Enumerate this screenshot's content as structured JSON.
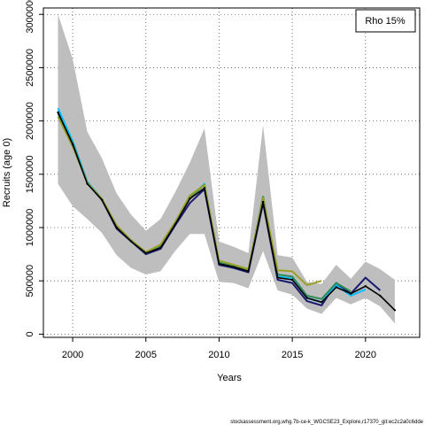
{
  "chart_data": {
    "type": "line",
    "xlabel": "Years",
    "ylabel": "Recruits (age 0)",
    "xlim": [
      1998,
      2023.7
    ],
    "ylim": [
      -30000,
      3060000
    ],
    "x_ticks": [
      2000,
      2005,
      2010,
      2015,
      2020
    ],
    "y_ticks": [
      0,
      500000,
      1000000,
      1500000,
      2000000,
      2500000,
      3000000
    ],
    "x_tick_labels": [
      "2000",
      "2005",
      "2010",
      "2015",
      "2020"
    ],
    "y_tick_labels": [
      "0",
      "500000",
      "1000000",
      "1500000",
      "2000000",
      "2500000",
      "3000000"
    ],
    "grid": true,
    "legend_position": "top-right",
    "legend_text": "Rho 15%",
    "caption": "stockassessment.org,whg.7b-ce-k_WGCSE23_Explore,r17370_git:ec2c2a0c6dde",
    "band": {
      "x": [
        1999,
        2000,
        2001,
        2002,
        2003,
        2004,
        2005,
        2006,
        2007,
        2008,
        2009,
        2010,
        2011,
        2012,
        2013,
        2014,
        2015,
        2016,
        2017,
        2018,
        2019,
        2020,
        2021,
        2022
      ],
      "upper": [
        3000000,
        2580000,
        1900000,
        1650000,
        1320000,
        1120000,
        970000,
        1080000,
        1330000,
        1610000,
        1930000,
        870000,
        820000,
        760000,
        1960000,
        740000,
        720000,
        490000,
        470000,
        650000,
        520000,
        680000,
        610000,
        510000
      ],
      "lower": [
        1410000,
        1200000,
        1080000,
        950000,
        740000,
        620000,
        560000,
        590000,
        780000,
        940000,
        940000,
        490000,
        480000,
        430000,
        780000,
        410000,
        370000,
        240000,
        190000,
        340000,
        280000,
        340000,
        260000,
        100000
      ],
      "color": "#bebebe"
    },
    "series": [
      {
        "color": "#000000",
        "x": [
          1999,
          2000,
          2001,
          2002,
          2003,
          2004,
          2005,
          2006,
          2007,
          2008,
          2009,
          2010,
          2011,
          2012,
          2013,
          2014,
          2015,
          2016,
          2017,
          2018,
          2019,
          2020,
          2021,
          2022
        ],
        "values": [
          2080000,
          1780000,
          1410000,
          1260000,
          1000000,
          870000,
          760000,
          810000,
          1030000,
          1270000,
          1370000,
          660000,
          630000,
          590000,
          1240000,
          530000,
          510000,
          340000,
          300000,
          440000,
          380000,
          450000,
          360000,
          225000
        ]
      },
      {
        "color": "#191970",
        "x": [
          1999,
          2000,
          2001,
          2002,
          2003,
          2004,
          2005,
          2006,
          2007,
          2008,
          2009,
          2010,
          2011,
          2012,
          2013,
          2014,
          2015,
          2016,
          2017,
          2018,
          2019,
          2020,
          2021
        ],
        "values": [
          2090000,
          1790000,
          1420000,
          1260000,
          990000,
          870000,
          750000,
          800000,
          1020000,
          1230000,
          1360000,
          650000,
          620000,
          580000,
          1230000,
          510000,
          480000,
          310000,
          270000,
          480000,
          380000,
          530000,
          410000
        ]
      },
      {
        "color": "#00bfff",
        "x": [
          1999,
          2000,
          2001,
          2002,
          2003,
          2004,
          2005,
          2006,
          2007,
          2008,
          2009,
          2010,
          2011,
          2012,
          2013,
          2014,
          2015,
          2016,
          2017,
          2018,
          2019,
          2020
        ],
        "values": [
          2120000,
          1810000,
          1430000,
          1270000,
          1010000,
          880000,
          760000,
          820000,
          1040000,
          1280000,
          1410000,
          670000,
          640000,
          600000,
          1290000,
          540000,
          520000,
          340000,
          300000,
          460000,
          360000,
          420000
        ]
      },
      {
        "color": "#2e8b57",
        "x": [
          1999,
          2000,
          2001,
          2002,
          2003,
          2004,
          2005,
          2006,
          2007,
          2008,
          2009,
          2010,
          2011,
          2012,
          2013,
          2014,
          2015,
          2016,
          2017,
          2018,
          2019
        ],
        "values": [
          2070000,
          1790000,
          1420000,
          1260000,
          1010000,
          870000,
          760000,
          820000,
          1040000,
          1280000,
          1400000,
          670000,
          640000,
          600000,
          1290000,
          560000,
          540000,
          360000,
          330000,
          480000,
          400000
        ]
      },
      {
        "color": "#9aa025",
        "x": [
          1999,
          2000,
          2001,
          2002,
          2003,
          2004,
          2005,
          2006,
          2007,
          2008,
          2009,
          2010,
          2011,
          2012,
          2013,
          2014,
          2015,
          2016,
          2017
        ],
        "values": [
          2040000,
          1760000,
          1420000,
          1270000,
          1020000,
          880000,
          770000,
          840000,
          1050000,
          1300000,
          1400000,
          690000,
          650000,
          610000,
          1280000,
          600000,
          590000,
          460000,
          500000
        ]
      }
    ]
  }
}
